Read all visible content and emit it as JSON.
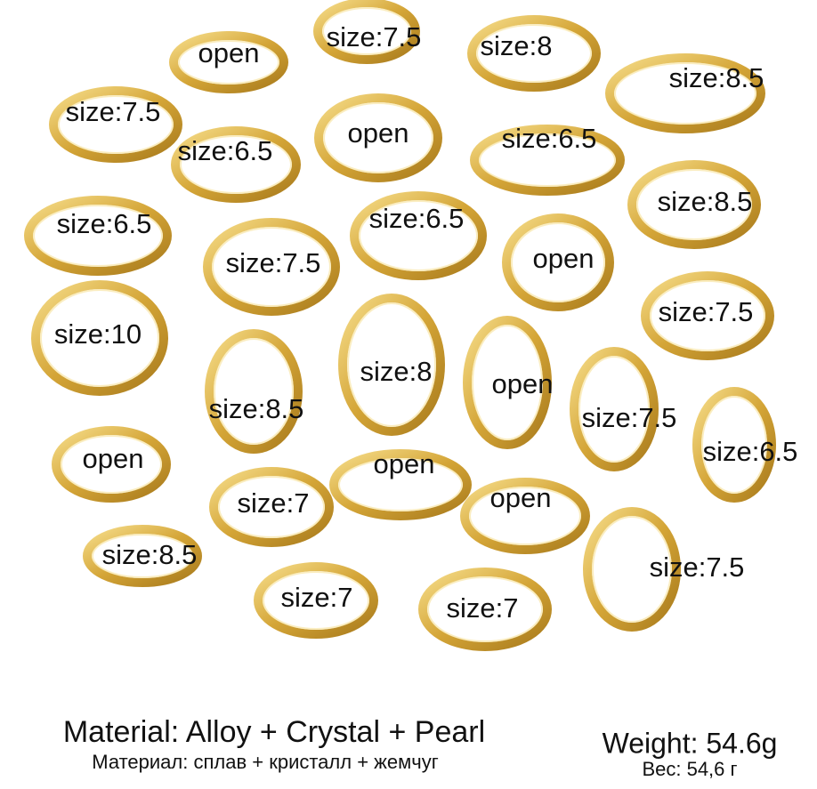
{
  "ring_labels": [
    "open",
    "size:7.5",
    "size:8",
    "size:8.5",
    "size:7.5",
    "open",
    "size:6.5",
    "size:6.5",
    "size:6.5",
    "size:6.5",
    "size:8.5",
    "size:7.5",
    "open",
    "size:7.5",
    "size:10",
    "size:8",
    "open",
    "size:8.5",
    "size:7.5",
    "size:6.5",
    "open",
    "open",
    "size:7",
    "open",
    "size:8.5",
    "size:7.5",
    "size:7",
    "size:7"
  ],
  "footer": {
    "material": "Material: Alloy + Crystal + Pearl",
    "material_ru": "Материал: сплав + кристалл +  жемчуг",
    "weight": "Weight: 54.6g",
    "weight_ru": "Вес: 54,6 г"
  }
}
